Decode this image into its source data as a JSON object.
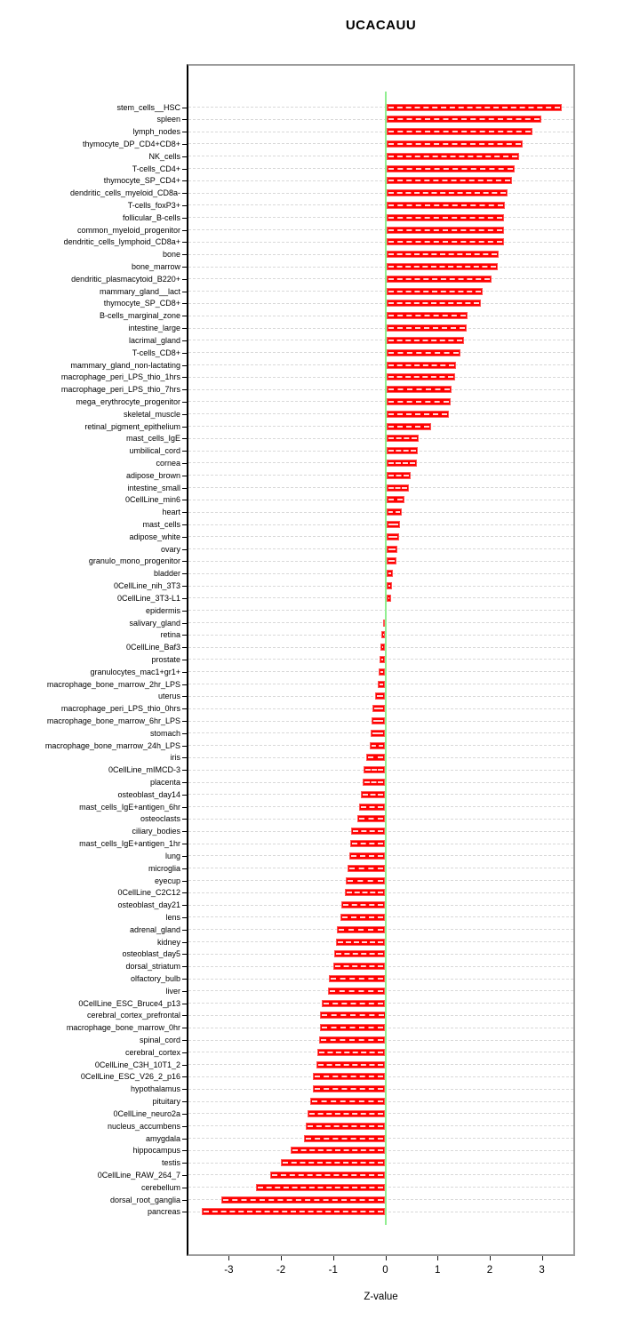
{
  "chart_data": {
    "type": "bar",
    "orientation": "horizontal",
    "title": "UCACAUU",
    "xlabel": "Z-value",
    "x_ticks": [
      -3,
      -2,
      -1,
      0,
      1,
      2,
      3
    ],
    "xlim": [
      -3.8,
      3.65
    ],
    "grid": "horizontal-dashed",
    "legend": "none",
    "colors": {
      "bar": "#FF0000",
      "zero_line": "#90EE90",
      "gridline": "#D8D8D8",
      "plot_border": "#9C9C9C",
      "axis": "#000000"
    },
    "categories": [
      "stem_cells__HSC",
      "spleen",
      "lymph_nodes",
      "thymocyte_DP_CD4+CD8+",
      "NK_cells",
      "T-cells_CD4+",
      "thymocyte_SP_CD4+",
      "dendritic_cells_myeloid_CD8a-",
      "T-cells_foxP3+",
      "follicular_B-cells",
      "common_myeloid_progenitor",
      "dendritic_cells_lymphoid_CD8a+",
      "bone",
      "bone_marrow",
      "dendritic_plasmacytoid_B220+",
      "mammary_gland__lact",
      "thymocyte_SP_CD8+",
      "B-cells_marginal_zone",
      "intestine_large",
      "lacrimal_gland",
      "T-cells_CD8+",
      "mammary_gland_non-lactating",
      "macrophage_peri_LPS_thio_1hrs",
      "macrophage_peri_LPS_thio_7hrs",
      "mega_erythrocyte_progenitor",
      "skeletal_muscle",
      "retinal_pigment_epithelium",
      "mast_cells_IgE",
      "umbilical_cord",
      "cornea",
      "adipose_brown",
      "intestine_small",
      "0CellLine_min6",
      "heart",
      "mast_cells",
      "adipose_white",
      "ovary",
      "granulo_mono_progenitor",
      "bladder",
      "0CellLine_nih_3T3",
      "0CellLine_3T3-L1",
      "epidermis",
      "salivary_gland",
      "retina",
      "0CellLine_Baf3",
      "prostate",
      "granulocytes_mac1+gr1+",
      "macrophage_bone_marrow_2hr_LPS",
      "uterus",
      "macrophage_peri_LPS_thio_0hrs",
      "macrophage_bone_marrow_6hr_LPS",
      "stomach",
      "macrophage_bone_marrow_24h_LPS",
      "iris",
      "0CellLine_mIMCD-3",
      "placenta",
      "osteoblast_day14",
      "mast_cells_IgE+antigen_6hr",
      "osteoclasts",
      "ciliary_bodies",
      "mast_cells_IgE+antigen_1hr",
      "lung",
      "microglia",
      "eyecup",
      "0CellLine_C2C12",
      "osteoblast_day21",
      "lens",
      "adrenal_gland",
      "kidney",
      "osteoblast_day5",
      "dorsal_striatum",
      "olfactory_bulb",
      "liver",
      "0CellLine_ESC_Bruce4_p13",
      "cerebral_cortex_prefrontal",
      "macrophage_bone_marrow_0hr",
      "spinal_cord",
      "cerebral_cortex",
      "0CellLine_C3H_10T1_2",
      "0CellLine_ESC_V26_2_p16",
      "hypothalamus",
      "pituitary",
      "0CellLine_neuro2a",
      "nucleus_accumbens",
      "amygdala",
      "hippocampus",
      "testis",
      "0CellLine_RAW_264_7",
      "cerebellum",
      "dorsal_root_ganglia",
      "pancreas"
    ],
    "values": [
      3.37,
      2.97,
      2.8,
      2.62,
      2.55,
      2.46,
      2.41,
      2.32,
      2.28,
      2.26,
      2.26,
      2.25,
      2.16,
      2.14,
      2.02,
      1.85,
      1.81,
      1.56,
      1.55,
      1.49,
      1.43,
      1.34,
      1.32,
      1.26,
      1.23,
      1.2,
      0.86,
      0.62,
      0.61,
      0.58,
      0.46,
      0.44,
      0.35,
      0.3,
      0.27,
      0.25,
      0.22,
      0.2,
      0.13,
      0.11,
      0.1,
      -0.01,
      -0.05,
      -0.08,
      -0.1,
      -0.11,
      -0.12,
      -0.14,
      -0.19,
      -0.24,
      -0.27,
      -0.28,
      -0.29,
      -0.37,
      -0.41,
      -0.44,
      -0.47,
      -0.5,
      -0.54,
      -0.65,
      -0.67,
      -0.69,
      -0.73,
      -0.76,
      -0.78,
      -0.84,
      -0.86,
      -0.92,
      -0.95,
      -0.98,
      -1.0,
      -1.09,
      -1.1,
      -1.21,
      -1.25,
      -1.26,
      -1.27,
      -1.3,
      -1.32,
      -1.38,
      -1.39,
      -1.44,
      -1.49,
      -1.53,
      -1.56,
      -1.82,
      -2.0,
      -2.21,
      -2.48,
      -3.14,
      -3.52
    ]
  }
}
